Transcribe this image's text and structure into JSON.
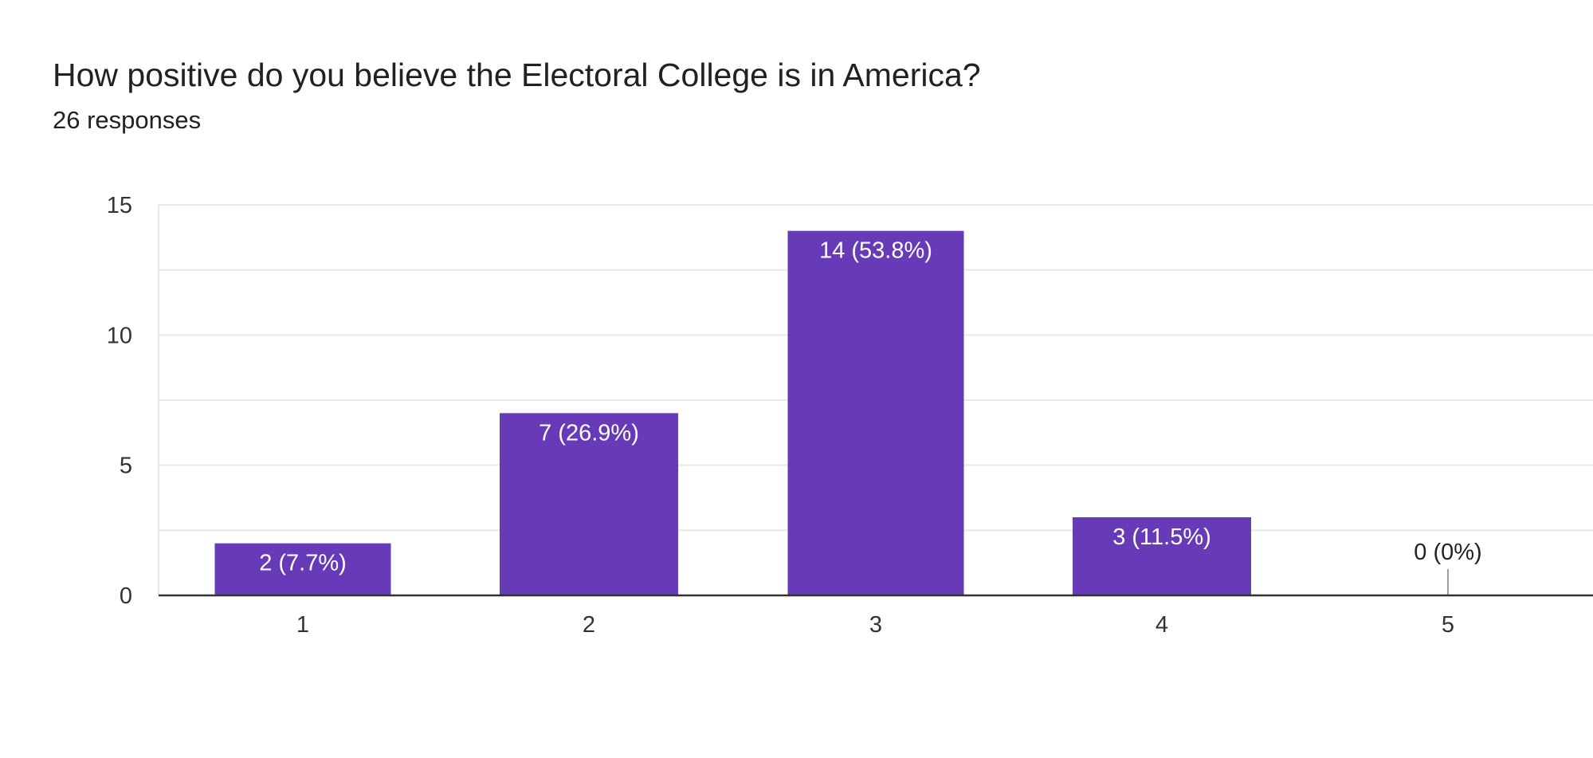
{
  "question": {
    "title": "How positive do you believe the Electoral College is in America?",
    "responses": "26 responses"
  },
  "colors": {
    "bar": "#673ab7",
    "axis": "#333333",
    "grid": "#e8e8e8",
    "zero_stub": "#9e9e9e"
  },
  "chart_data": {
    "type": "bar",
    "categories": [
      "1",
      "2",
      "3",
      "4",
      "5"
    ],
    "values": [
      2,
      7,
      14,
      3,
      0
    ],
    "data_labels": [
      "2 (7.7%)",
      "7 (26.9%)",
      "14 (53.8%)",
      "3 (11.5%)",
      "0 (0%)"
    ],
    "y_ticks": [
      0,
      5,
      10,
      15
    ],
    "y_minor_ticks": [
      2.5,
      7.5,
      12.5
    ],
    "ylim": [
      0,
      15
    ],
    "grid": true,
    "legend": "none"
  }
}
